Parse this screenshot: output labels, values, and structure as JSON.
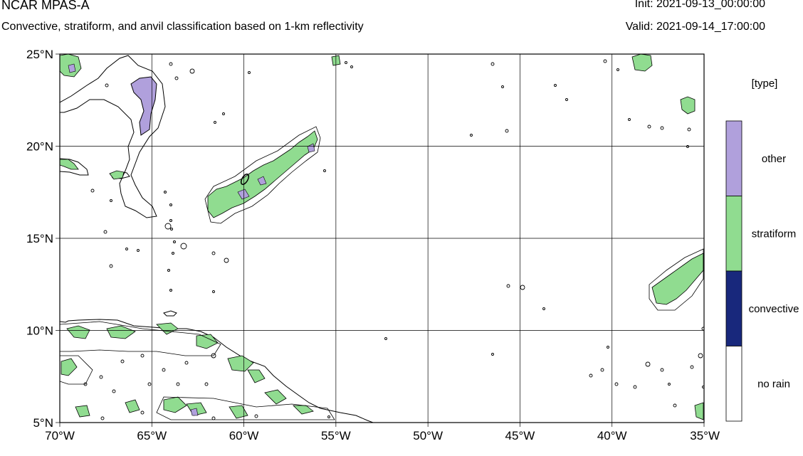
{
  "header": {
    "title": "NCAR MPAS-A",
    "subtitle": "Convective, stratiform, and anvil classification based on 1-km reflectivity",
    "init": "Init: 2021-09-13_00:00:00",
    "valid": "Valid: 2021-09-14_17:00:00"
  },
  "map": {
    "lon_range": [
      -70,
      -35
    ],
    "lat_range": [
      5,
      25
    ],
    "lat_ticks": [
      {
        "value": 25,
        "label": "25°N"
      },
      {
        "value": 20,
        "label": "20°N"
      },
      {
        "value": 15,
        "label": "15°N"
      },
      {
        "value": 10,
        "label": "10°N"
      },
      {
        "value": 5,
        "label": "5°N"
      }
    ],
    "lon_ticks": [
      {
        "value": -70,
        "label": "70°W"
      },
      {
        "value": -65,
        "label": "65°W"
      },
      {
        "value": -60,
        "label": "60°W"
      },
      {
        "value": -55,
        "label": "55°W"
      },
      {
        "value": -50,
        "label": "50°W"
      },
      {
        "value": -45,
        "label": "45°W"
      },
      {
        "value": -40,
        "label": "40°W"
      },
      {
        "value": -35,
        "label": "35°W"
      }
    ]
  },
  "legend": {
    "title": "[type]",
    "categories": [
      {
        "label": "other",
        "color": "#b0a0dc"
      },
      {
        "label": "stratiform",
        "color": "#90dc90"
      },
      {
        "label": "convective",
        "color": "#18287c"
      },
      {
        "label": "no rain",
        "color": "#ffffff"
      }
    ]
  }
}
